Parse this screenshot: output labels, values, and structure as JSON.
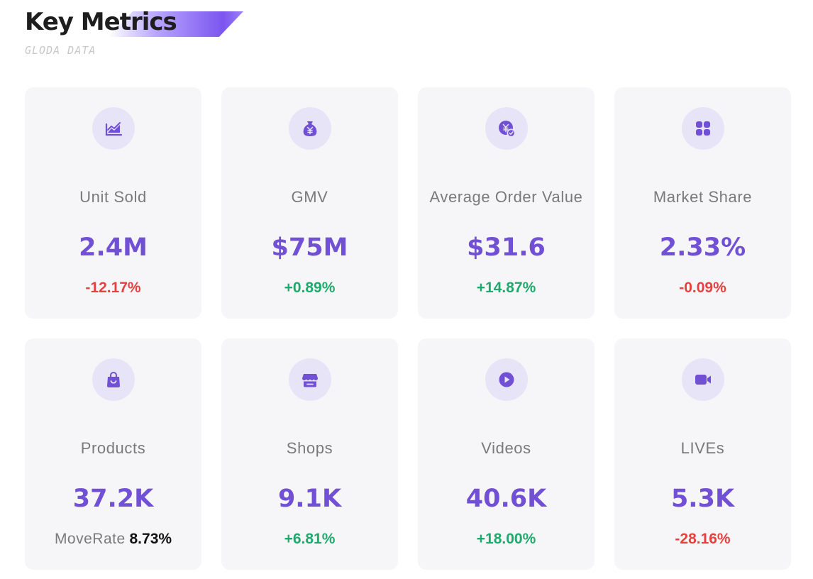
{
  "header": {
    "title": "Key Metrics",
    "subtitle": "GLODA DATA"
  },
  "colors": {
    "accent": "#7150d6",
    "icon_bg": "#e8e4f7",
    "card_bg": "#f6f6f8",
    "negative": "#e8403f",
    "positive": "#1eaa6c"
  },
  "metrics": [
    {
      "label": "Unit Sold",
      "value": "2.4M",
      "change": "-12.17%",
      "icon": "trend-chart-icon"
    },
    {
      "label": "GMV",
      "value": "$75M",
      "change": "+0.89%",
      "icon": "money-bag-icon"
    },
    {
      "label": "Average Order Value",
      "value": "$31.6",
      "change": "+14.87%",
      "icon": "yen-coin-check-icon"
    },
    {
      "label": "Market Share",
      "value": "2.33%",
      "change": "-0.09%",
      "icon": "grid-apps-icon"
    },
    {
      "label": "Products",
      "value": "37.2K",
      "moverate_label": "MoveRate",
      "moverate_value": "8.73%",
      "icon": "shopping-bag-icon"
    },
    {
      "label": "Shops",
      "value": "9.1K",
      "change": "+6.81%",
      "icon": "storefront-icon"
    },
    {
      "label": "Videos",
      "value": "40.6K",
      "change": "+18.00%",
      "icon": "play-circle-icon"
    },
    {
      "label": "LIVEs",
      "value": "5.3K",
      "change": "-28.16%",
      "icon": "video-camera-icon"
    }
  ]
}
